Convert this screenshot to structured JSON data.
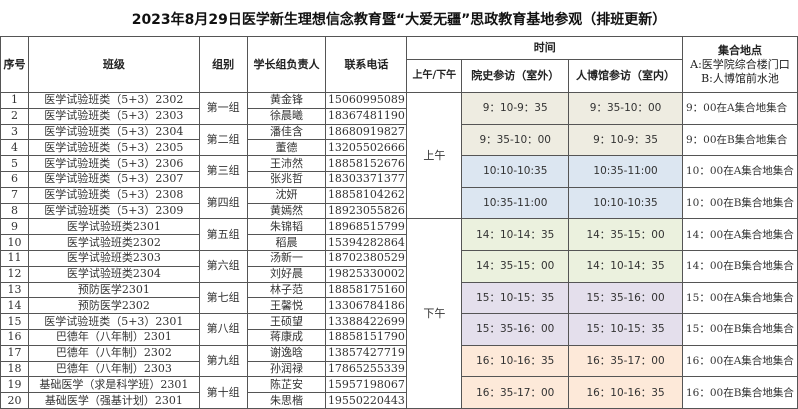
{
  "title": "2023年8月29日医学新生理想信念教育暨“大爱无疆”思政教育基地参观（排班更新）",
  "headers": {
    "no": "序号",
    "class": "班级",
    "group": "组别",
    "leader": "学长组负责人",
    "phone": "联系电话",
    "time": "时间",
    "ampm": "上午/下午",
    "history": "院史参访（室外）",
    "museum": "人博馆参访（室内）",
    "meet": "集合地点",
    "meet_a": "A:医学院综合楼门口",
    "meet_b": "B:人博馆前水池"
  },
  "rows": [
    {
      "no": "1",
      "class": "医学试验班类（5+3）2302",
      "leader": "黄金锋",
      "phone": "15060995089"
    },
    {
      "no": "2",
      "class": "医学试验班类（5+3）2303",
      "leader": "徐晨曦",
      "phone": "18367481190"
    },
    {
      "no": "3",
      "class": "医学试验班类（5+3）2304",
      "leader": "潘佳含",
      "phone": "18680919827"
    },
    {
      "no": "4",
      "class": "医学试验班类（5+3）2305",
      "leader": "董德",
      "phone": "13205502666"
    },
    {
      "no": "5",
      "class": "医学试验班类（5+3）2306",
      "leader": "王沛然",
      "phone": "18858152676"
    },
    {
      "no": "6",
      "class": "医学试验班类（5+3）2307",
      "leader": "张兆哲",
      "phone": "18303371377"
    },
    {
      "no": "7",
      "class": "医学试验班类（5+3）2308",
      "leader": "沈妍",
      "phone": "18858104262"
    },
    {
      "no": "8",
      "class": "医学试验班类（5+3）2309",
      "leader": "黄嫣然",
      "phone": "18923055826"
    },
    {
      "no": "9",
      "class": "医学试验班类2301",
      "leader": "朱锦韬",
      "phone": "18968515799"
    },
    {
      "no": "10",
      "class": "医学试验班类2302",
      "leader": "稻晨",
      "phone": "15394282864"
    },
    {
      "no": "11",
      "class": "医学试验班类2303",
      "leader": "汤新一",
      "phone": "18702380529"
    },
    {
      "no": "12",
      "class": "医学试验班类2304",
      "leader": "刘好晨",
      "phone": "19825330002"
    },
    {
      "no": "13",
      "class": "预防医学2301",
      "leader": "林子范",
      "phone": "18858175160"
    },
    {
      "no": "14",
      "class": "预防医学2302",
      "leader": "王馨悦",
      "phone": "13306784186"
    },
    {
      "no": "15",
      "class": "医学试验班类（5+3）2301",
      "leader": "王硕望",
      "phone": "13388422699"
    },
    {
      "no": "16",
      "class": "巴德年（八年制）2301",
      "leader": "蒋康成",
      "phone": "18858151790"
    },
    {
      "no": "17",
      "class": "巴德年（八年制）2302",
      "leader": "谢逸晗",
      "phone": "13857427719"
    },
    {
      "no": "18",
      "class": "巴德年（八年制）2303",
      "leader": "孙润禄",
      "phone": "17865255339"
    },
    {
      "no": "19",
      "class": "基础医学（求是科学班）2301",
      "leader": "陈芷安",
      "phone": "15957198067"
    },
    {
      "no": "20",
      "class": "基础医学（强基计划）2301",
      "leader": "朱思楷",
      "phone": "19550220443"
    }
  ],
  "groups": [
    "第一组",
    "第二组",
    "第三组",
    "第四组",
    "第五组",
    "第六组",
    "第七组",
    "第八组",
    "第九组",
    "第十组"
  ],
  "periods": [
    "上午",
    "下午"
  ],
  "slots": [
    {
      "history": "9：10-9：35",
      "museum": "9：35-10：00",
      "meet": "9：00在A集合地集合",
      "color": "#eeece1"
    },
    {
      "history": "9：35-10：00",
      "museum": "9：10-9：35",
      "meet": "9：00在B集合地集合",
      "color": "#eeece1"
    },
    {
      "history": "10:10-10:35",
      "museum": "10:35-11:00",
      "meet": "10：00在A集合地集合",
      "color": "#dce6f1"
    },
    {
      "history": "10:35-11:00",
      "museum": "10:10-10:35",
      "meet": "10：00在B集合地集合",
      "color": "#dce6f1"
    },
    {
      "history": "14：10-14：35",
      "museum": "14：35-15：00",
      "meet": "14：00在A集合地集合",
      "color": "#ebf1de"
    },
    {
      "history": "14：35-15：00",
      "museum": "14：10-14：35",
      "meet": "14：00在B集合地集合",
      "color": "#ebf1de"
    },
    {
      "history": "15：10-15：35",
      "museum": "15：35-16：00",
      "meet": "15：00在A集合地集合",
      "color": "#e4dfec"
    },
    {
      "history": "15：35-16：00",
      "museum": "15：10-15：35",
      "meet": "15：00在B集合地集合",
      "color": "#e4dfec"
    },
    {
      "history": "16：10-16：35",
      "museum": "16：35-17：00",
      "meet": "16：00在A集合地集合",
      "color": "#fde9d9"
    },
    {
      "history": "16：35-17：00",
      "museum": "16：10-16：35",
      "meet": "16：00在B集合地集合",
      "color": "#fde9d9"
    }
  ]
}
